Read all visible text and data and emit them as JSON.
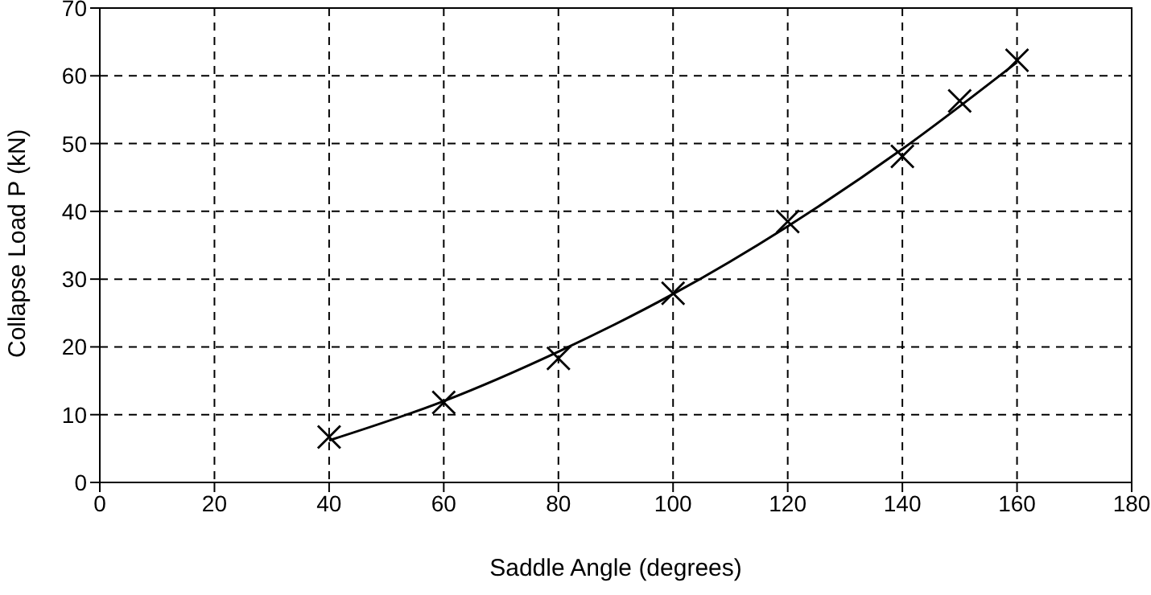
{
  "chart_data": {
    "type": "scatter",
    "xlabel": "Saddle Angle (degrees)",
    "ylabel": "Collapse Load P (kN)",
    "x": [
      40,
      60,
      80,
      100,
      120,
      140,
      150,
      160
    ],
    "series": [
      {
        "color": "#000000",
        "marker": "cross",
        "values": [
          6.7,
          11.8,
          18.3,
          27.9,
          38.5,
          48.1,
          56.3,
          62.3
        ]
      },
      {
        "type": "line",
        "color": "#000000",
        "marker": "none",
        "line_style": "solid",
        "x": [
          40,
          60,
          80,
          100,
          120,
          140,
          160
        ],
        "values": [
          6.2,
          12,
          19.3,
          27.8,
          37.8,
          49.2,
          62
        ]
      }
    ],
    "xlim": [
      0,
      180
    ],
    "xticks": [
      0,
      20,
      40,
      60,
      80,
      100,
      120,
      140,
      160,
      180
    ],
    "ylim": [
      0,
      70
    ],
    "yticks": [
      0,
      10,
      20,
      30,
      40,
      50,
      60,
      70
    ],
    "grid": true
  }
}
